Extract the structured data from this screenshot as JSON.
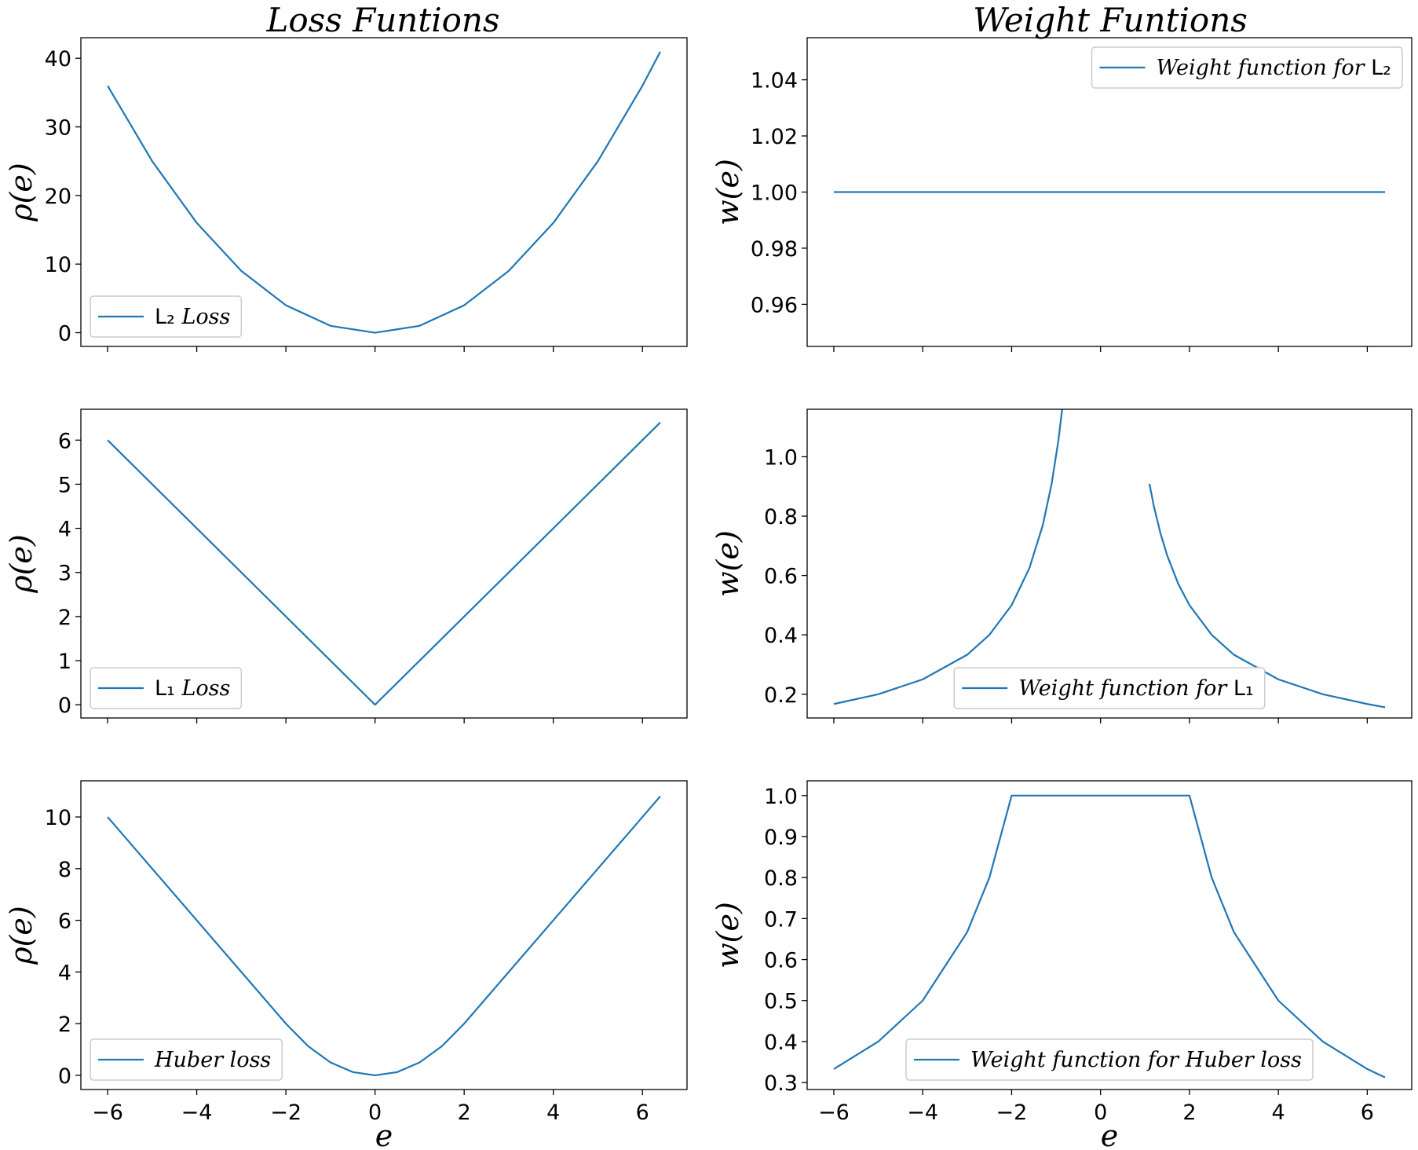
{
  "figure": {
    "col_titles": [
      "Loss Funtions",
      "Weight Funtions"
    ],
    "xlabel": "e",
    "xticks": [
      -6,
      -4,
      -2,
      0,
      2,
      4,
      6
    ],
    "line_color": "#1f77b4"
  },
  "chart_data": [
    {
      "type": "line",
      "title": "Loss Funtions",
      "ylabel": "ρ(e)",
      "xlabel": "",
      "xlim": [
        -6.6,
        7.0
      ],
      "ylim": [
        -2.0,
        43.0
      ],
      "yticks": [
        0,
        10,
        20,
        30,
        40
      ],
      "legend": {
        "label": "L₂ Loss",
        "placement": "lower-left"
      },
      "grid": false,
      "series": [
        {
          "name": "L₂ Loss",
          "x": [
            -6,
            -5,
            -4,
            -3,
            -2,
            -1,
            0,
            1,
            2,
            3,
            4,
            5,
            6,
            6.4
          ],
          "y": [
            36,
            25,
            16,
            9,
            4,
            1,
            0,
            1,
            4,
            9,
            16,
            25,
            36,
            40.96
          ]
        }
      ]
    },
    {
      "type": "line",
      "title": "Weight Funtions",
      "ylabel": "w(e)",
      "xlabel": "",
      "xlim": [
        -6.6,
        7.0
      ],
      "ylim": [
        0.945,
        1.055
      ],
      "yticks": [
        0.96,
        0.98,
        1.0,
        1.02,
        1.04
      ],
      "legend": {
        "label": "Weight function for L₂",
        "placement": "upper-right"
      },
      "grid": false,
      "series": [
        {
          "name": "Weight function for L₂",
          "x": [
            -6,
            6.4
          ],
          "y": [
            1.0,
            1.0
          ]
        }
      ]
    },
    {
      "type": "line",
      "title": "",
      "ylabel": "ρ(e)",
      "xlabel": "",
      "xlim": [
        -6.6,
        7.0
      ],
      "ylim": [
        -0.3,
        6.7
      ],
      "yticks": [
        0,
        1,
        2,
        3,
        4,
        5,
        6
      ],
      "legend": {
        "label": "L₁ Loss",
        "placement": "lower-left"
      },
      "grid": false,
      "series": [
        {
          "name": "L₁ Loss",
          "x": [
            -6,
            0,
            6.4
          ],
          "y": [
            6,
            0,
            6.4
          ]
        }
      ]
    },
    {
      "type": "line",
      "title": "",
      "ylabel": "w(e)",
      "xlabel": "",
      "xlim": [
        -6.6,
        7.0
      ],
      "ylim": [
        0.12,
        1.16
      ],
      "yticks": [
        0.2,
        0.4,
        0.6,
        0.8,
        1.0
      ],
      "legend": {
        "label": "Weight function for L₁",
        "placement": "lower-center"
      },
      "grid": false,
      "series": [
        {
          "name": "Weight function for L₁",
          "x": [
            -6,
            -5,
            -4,
            -3,
            -2.5,
            -2,
            -1.6,
            -1.3,
            -1.1,
            -0.95,
            -0.85,
            -0.78
          ],
          "y": [
            0.167,
            0.2,
            0.25,
            0.333,
            0.4,
            0.5,
            0.625,
            0.769,
            0.909,
            1.053,
            1.176,
            1.282
          ]
        },
        {
          "name": "",
          "x": [
            1.1,
            1.2,
            1.35,
            1.5,
            1.75,
            2,
            2.5,
            3,
            4,
            5,
            6,
            6.4
          ],
          "y": [
            0.909,
            0.833,
            0.741,
            0.667,
            0.571,
            0.5,
            0.4,
            0.333,
            0.25,
            0.2,
            0.167,
            0.156
          ]
        }
      ]
    },
    {
      "type": "line",
      "title": "",
      "ylabel": "ρ(e)",
      "xlabel": "e",
      "xlim": [
        -6.6,
        7.0
      ],
      "ylim": [
        -0.55,
        11.4
      ],
      "yticks": [
        0,
        2,
        4,
        6,
        8,
        10
      ],
      "legend": {
        "label": "Huber loss",
        "placement": "lower-left"
      },
      "grid": false,
      "series": [
        {
          "name": "Huber loss",
          "x": [
            -6,
            -5,
            -4,
            -3,
            -2,
            -1.5,
            -1,
            -0.5,
            0,
            0.5,
            1,
            1.5,
            2,
            3,
            4,
            5,
            6,
            6.4
          ],
          "y": [
            10,
            8,
            6,
            4,
            2,
            1.125,
            0.5,
            0.125,
            0,
            0.125,
            0.5,
            1.125,
            2,
            4,
            6,
            8,
            10,
            10.8
          ]
        }
      ]
    },
    {
      "type": "line",
      "title": "",
      "ylabel": "w(e)",
      "xlabel": "e",
      "xlim": [
        -6.6,
        7.0
      ],
      "ylim": [
        0.283,
        1.036
      ],
      "yticks": [
        0.3,
        0.4,
        0.5,
        0.6,
        0.7,
        0.8,
        0.9,
        1.0
      ],
      "legend": {
        "label": "Weight function for Huber loss",
        "placement": "lower-center"
      },
      "grid": false,
      "series": [
        {
          "name": "Weight function for Huber loss",
          "x": [
            -6,
            -5,
            -4,
            -3,
            -2.5,
            -2,
            2,
            2.5,
            3,
            4,
            5,
            6,
            6.4
          ],
          "y": [
            0.333,
            0.4,
            0.5,
            0.667,
            0.8,
            1.0,
            1.0,
            0.8,
            0.667,
            0.5,
            0.4,
            0.333,
            0.3125
          ]
        }
      ]
    }
  ]
}
